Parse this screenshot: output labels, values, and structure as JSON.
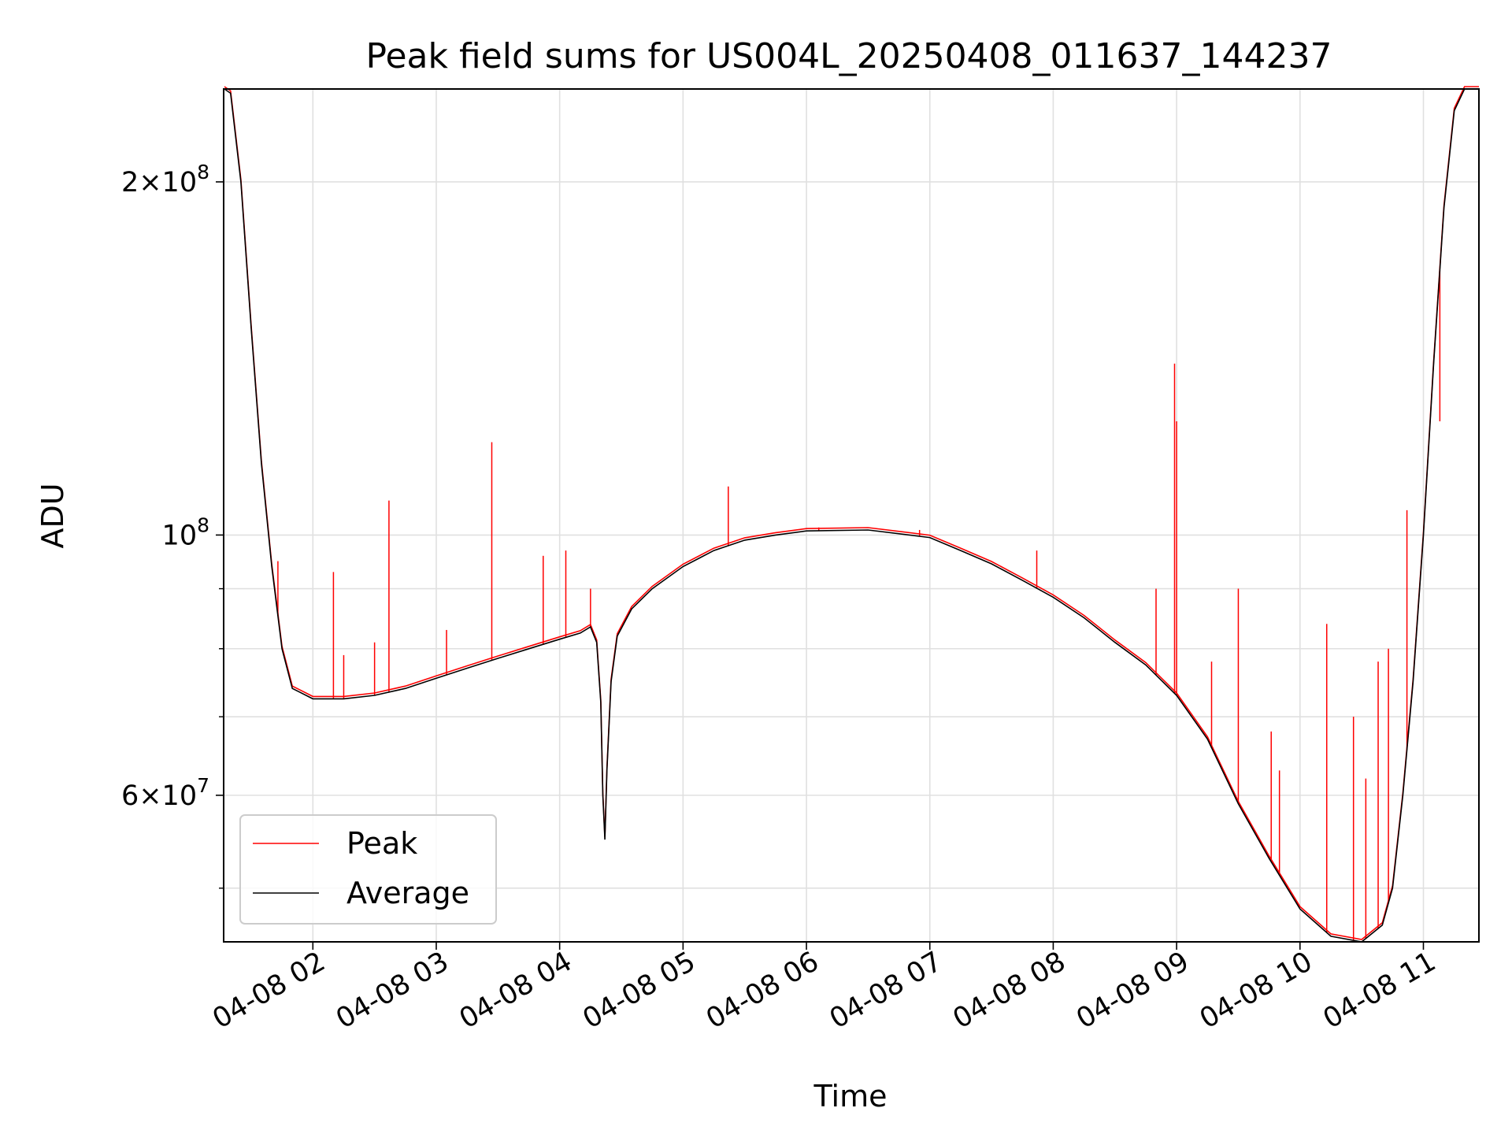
{
  "chart_data": {
    "type": "line",
    "title": "Peak field sums for US004L_20250408_011637_144237",
    "xlabel": "Time",
    "ylabel": "ADU",
    "y_scale": "log",
    "ylim": [
      45000000,
      240000000
    ],
    "xlim": [
      "2025-04-08 01:16:37",
      "2025-04-08 11:27:00"
    ],
    "x_ticks": [
      {
        "value": "2025-04-08 02:00",
        "label": "04-08 02"
      },
      {
        "value": "2025-04-08 03:00",
        "label": "04-08 03"
      },
      {
        "value": "2025-04-08 04:00",
        "label": "04-08 04"
      },
      {
        "value": "2025-04-08 05:00",
        "label": "04-08 05"
      },
      {
        "value": "2025-04-08 06:00",
        "label": "04-08 06"
      },
      {
        "value": "2025-04-08 07:00",
        "label": "04-08 07"
      },
      {
        "value": "2025-04-08 08:00",
        "label": "04-08 08"
      },
      {
        "value": "2025-04-08 09:00",
        "label": "04-08 09"
      },
      {
        "value": "2025-04-08 10:00",
        "label": "04-08 10"
      },
      {
        "value": "2025-04-08 11:00",
        "label": "04-08 11"
      }
    ],
    "y_ticks_major": [
      {
        "value": 200000000,
        "base": "2",
        "exp": "8"
      },
      {
        "value": 100000000,
        "base": "10",
        "exp": "8"
      },
      {
        "value": 60000000,
        "base": "6",
        "exp": "7"
      }
    ],
    "y_ticks_minor": [
      50000000,
      70000000,
      80000000,
      90000000
    ],
    "grid": true,
    "legend_position": "lower-left",
    "colors": {
      "peak": "#ff0000",
      "average": "#000000",
      "grid": "#e0e0e0"
    },
    "series": [
      {
        "name": "Average",
        "key": "average",
        "points": [
          [
            "2025-04-08 01:17",
            240000000
          ],
          [
            "2025-04-08 01:20",
            238000000
          ],
          [
            "2025-04-08 01:25",
            200000000
          ],
          [
            "2025-04-08 01:30",
            150000000
          ],
          [
            "2025-04-08 01:35",
            115000000
          ],
          [
            "2025-04-08 01:40",
            94000000
          ],
          [
            "2025-04-08 01:45",
            80000000
          ],
          [
            "2025-04-08 01:50",
            74000000
          ],
          [
            "2025-04-08 02:00",
            72500000
          ],
          [
            "2025-04-08 02:15",
            72500000
          ],
          [
            "2025-04-08 02:30",
            73000000
          ],
          [
            "2025-04-08 02:45",
            74000000
          ],
          [
            "2025-04-08 03:00",
            75500000
          ],
          [
            "2025-04-08 03:15",
            77000000
          ],
          [
            "2025-04-08 03:30",
            78500000
          ],
          [
            "2025-04-08 03:45",
            80000000
          ],
          [
            "2025-04-08 04:00",
            81500000
          ],
          [
            "2025-04-08 04:10",
            82500000
          ],
          [
            "2025-04-08 04:15",
            83500000
          ],
          [
            "2025-04-08 04:18",
            81000000
          ],
          [
            "2025-04-08 04:20",
            72000000
          ],
          [
            "2025-04-08 04:21",
            60000000
          ],
          [
            "2025-04-08 04:22",
            55000000
          ],
          [
            "2025-04-08 04:23",
            63000000
          ],
          [
            "2025-04-08 04:25",
            75000000
          ],
          [
            "2025-04-08 04:28",
            82000000
          ],
          [
            "2025-04-08 04:35",
            86500000
          ],
          [
            "2025-04-08 04:45",
            90000000
          ],
          [
            "2025-04-08 05:00",
            94000000
          ],
          [
            "2025-04-08 05:15",
            97000000
          ],
          [
            "2025-04-08 05:30",
            99000000
          ],
          [
            "2025-04-08 05:45",
            100000000
          ],
          [
            "2025-04-08 06:00",
            100800000
          ],
          [
            "2025-04-08 06:30",
            101000000
          ],
          [
            "2025-04-08 07:00",
            99500000
          ],
          [
            "2025-04-08 07:15",
            97000000
          ],
          [
            "2025-04-08 07:30",
            94500000
          ],
          [
            "2025-04-08 07:45",
            91500000
          ],
          [
            "2025-04-08 08:00",
            88500000
          ],
          [
            "2025-04-08 08:15",
            85000000
          ],
          [
            "2025-04-08 08:30",
            81000000
          ],
          [
            "2025-04-08 08:45",
            77500000
          ],
          [
            "2025-04-08 09:00",
            73000000
          ],
          [
            "2025-04-08 09:15",
            67000000
          ],
          [
            "2025-04-08 09:30",
            59000000
          ],
          [
            "2025-04-08 09:45",
            53000000
          ],
          [
            "2025-04-08 10:00",
            48000000
          ],
          [
            "2025-04-08 10:15",
            45500000
          ],
          [
            "2025-04-08 10:30",
            45000000
          ],
          [
            "2025-04-08 10:40",
            46500000
          ],
          [
            "2025-04-08 10:45",
            50000000
          ],
          [
            "2025-04-08 10:50",
            60000000
          ],
          [
            "2025-04-08 10:55",
            75000000
          ],
          [
            "2025-04-08 11:00",
            100000000
          ],
          [
            "2025-04-08 11:05",
            140000000
          ],
          [
            "2025-04-08 11:10",
            190000000
          ],
          [
            "2025-04-08 11:15",
            230000000
          ],
          [
            "2025-04-08 11:20",
            240000000
          ],
          [
            "2025-04-08 11:27",
            240000000
          ]
        ]
      },
      {
        "name": "Peak",
        "key": "peak",
        "spikes": [
          [
            "2025-04-08 01:43",
            95000000
          ],
          [
            "2025-04-08 02:10",
            93000000
          ],
          [
            "2025-04-08 02:15",
            79000000
          ],
          [
            "2025-04-08 02:30",
            81000000
          ],
          [
            "2025-04-08 02:37",
            107000000
          ],
          [
            "2025-04-08 03:05",
            83000000
          ],
          [
            "2025-04-08 03:27",
            120000000
          ],
          [
            "2025-04-08 03:52",
            96000000
          ],
          [
            "2025-04-08 04:03",
            97000000
          ],
          [
            "2025-04-08 04:15",
            90000000
          ],
          [
            "2025-04-08 05:22",
            110000000
          ],
          [
            "2025-04-08 06:06",
            101500000
          ],
          [
            "2025-04-08 06:55",
            101000000
          ],
          [
            "2025-04-08 07:52",
            97000000
          ],
          [
            "2025-04-08 08:50",
            90000000
          ],
          [
            "2025-04-08 08:59",
            140000000
          ],
          [
            "2025-04-08 09:00",
            125000000
          ],
          [
            "2025-04-08 09:17",
            78000000
          ],
          [
            "2025-04-08 09:30",
            90000000
          ],
          [
            "2025-04-08 09:46",
            68000000
          ],
          [
            "2025-04-08 09:50",
            63000000
          ],
          [
            "2025-04-08 10:13",
            84000000
          ],
          [
            "2025-04-08 10:26",
            70000000
          ],
          [
            "2025-04-08 10:32",
            62000000
          ],
          [
            "2025-04-08 10:38",
            78000000
          ],
          [
            "2025-04-08 10:43",
            80000000
          ],
          [
            "2025-04-08 10:52",
            105000000
          ],
          [
            "2025-04-08 11:08",
            125000000
          ]
        ]
      }
    ]
  }
}
